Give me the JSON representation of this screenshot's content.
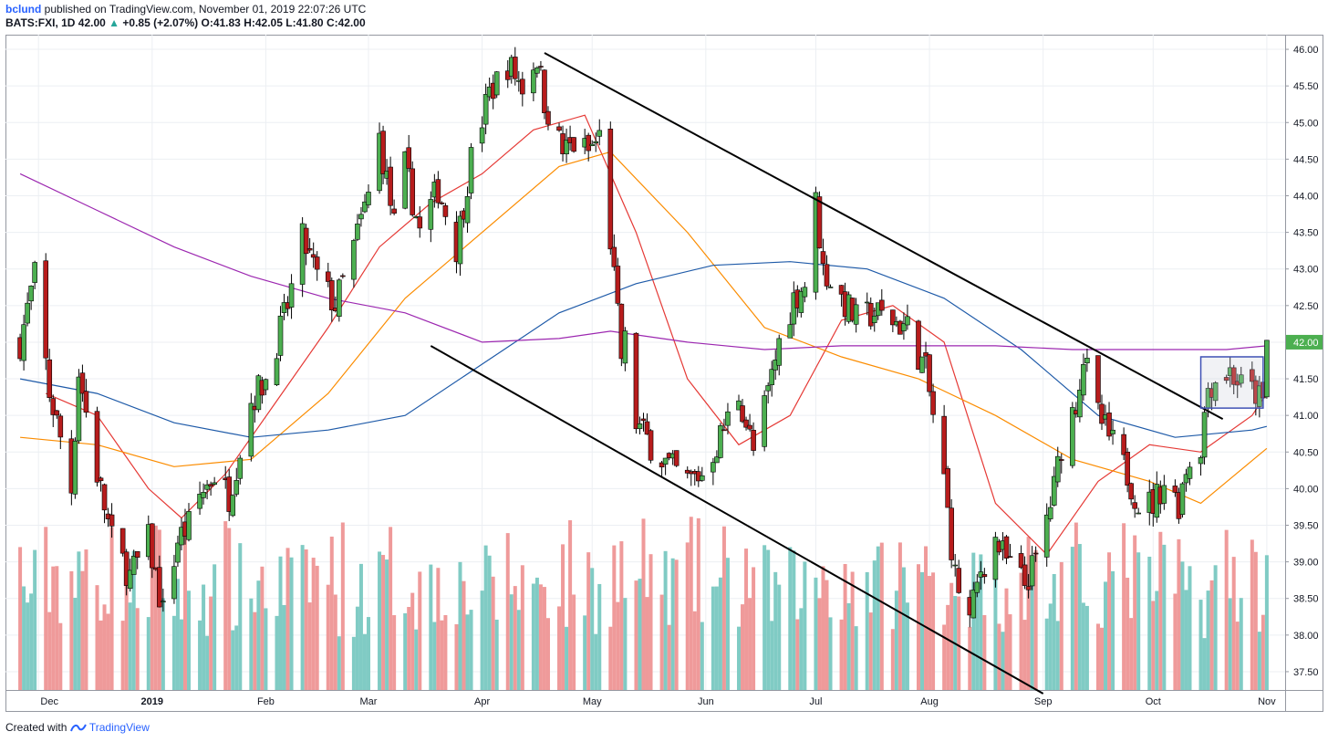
{
  "header": {
    "author": "bclund",
    "published": " published on TradingView.com, November 01, 2019 22:07:26 UTC",
    "symbol": "BATS:FXI, 1D",
    "last": "42.00",
    "change": "+0.85 (+2.07%)",
    "open_label": "O:",
    "open": "41.83",
    "high_label": "H:",
    "high": "42.05",
    "low_label": "L:",
    "low": "41.80",
    "close_label": "C:",
    "close": "42.00",
    "up_arrow": "▲"
  },
  "footer": {
    "created_with": "Created with",
    "brand": "TradingView",
    "brand_icon": "tradingview-logo-icon"
  },
  "chart_data": {
    "type": "candlestick",
    "symbol": "BATS:FXI",
    "interval": "1D",
    "last_price_label": "42.00",
    "y_range": [
      37.25,
      46.2
    ],
    "y_ticks": [
      "46.00",
      "45.50",
      "45.00",
      "44.50",
      "44.00",
      "43.50",
      "43.00",
      "42.50",
      "42.00",
      "41.50",
      "41.00",
      "40.50",
      "40.00",
      "39.50",
      "39.00",
      "38.50",
      "38.00",
      "37.50"
    ],
    "x_ticks": [
      "Dec",
      "2019",
      "Feb",
      "Mar",
      "Apr",
      "May",
      "Jun",
      "Jul",
      "Aug",
      "Sep",
      "Oct",
      "Nov"
    ],
    "x_tick_dates": [
      "2018-12-01",
      "2019-01-01",
      "2019-02-01",
      "2019-03-01",
      "2019-04-01",
      "2019-05-01",
      "2019-06-01",
      "2019-07-01",
      "2019-08-01",
      "2019-09-01",
      "2019-10-01",
      "2019-11-01"
    ],
    "grid": true,
    "colors": {
      "up": "#4caf50",
      "down": "#b71c1c",
      "volume_up": "#80cbc4",
      "volume_down": "#ef9a9a",
      "ma_fast": "#e53935",
      "ma_mid": "#fb8c00",
      "ma_slow": "#1e5aa8",
      "ma_long": "#9c27b0",
      "trendline": "#000000",
      "box": "#3f51b5"
    },
    "price_path": [
      [
        "2018-11-26",
        42.0
      ],
      [
        "2018-11-30",
        42.9
      ],
      [
        "2018-12-04",
        41.3
      ],
      [
        "2018-12-07",
        40.7
      ],
      [
        "2018-12-10",
        40.0
      ],
      [
        "2018-12-12",
        41.6
      ],
      [
        "2018-12-17",
        40.2
      ],
      [
        "2018-12-21",
        39.3
      ],
      [
        "2018-12-26",
        38.8
      ],
      [
        "2018-12-31",
        39.3
      ],
      [
        "2019-01-04",
        38.3
      ],
      [
        "2019-01-08",
        39.3
      ],
      [
        "2019-01-11",
        39.5
      ],
      [
        "2019-01-14",
        39.9
      ],
      [
        "2019-01-18",
        40.2
      ],
      [
        "2019-01-22",
        39.9
      ],
      [
        "2019-01-28",
        41.2
      ],
      [
        "2019-02-01",
        41.5
      ],
      [
        "2019-02-07",
        42.5
      ],
      [
        "2019-02-11",
        43.4
      ],
      [
        "2019-02-15",
        42.9
      ],
      [
        "2019-02-20",
        42.5
      ],
      [
        "2019-02-25",
        43.3
      ],
      [
        "2019-03-01",
        44.0
      ],
      [
        "2019-03-04",
        44.8
      ],
      [
        "2019-03-08",
        43.6
      ],
      [
        "2019-03-11",
        44.4
      ],
      [
        "2019-03-15",
        43.5
      ],
      [
        "2019-03-20",
        44.1
      ],
      [
        "2019-03-25",
        43.3
      ],
      [
        "2019-03-29",
        44.5
      ],
      [
        "2019-04-03",
        45.4
      ],
      [
        "2019-04-08",
        45.8
      ],
      [
        "2019-04-12",
        45.5
      ],
      [
        "2019-04-16",
        45.9
      ],
      [
        "2019-04-18",
        45.3
      ],
      [
        "2019-04-23",
        44.6
      ],
      [
        "2019-04-26",
        44.7
      ],
      [
        "2019-04-30",
        44.6
      ],
      [
        "2019-05-03",
        44.8
      ],
      [
        "2019-05-06",
        43.4
      ],
      [
        "2019-05-09",
        41.8
      ],
      [
        "2019-05-10",
        42.0
      ],
      [
        "2019-05-13",
        40.9
      ],
      [
        "2019-05-17",
        40.6
      ],
      [
        "2019-05-22",
        40.3
      ],
      [
        "2019-05-27",
        40.1
      ],
      [
        "2019-05-31",
        40.2
      ],
      [
        "2019-06-04",
        40.6
      ],
      [
        "2019-06-10",
        41.3
      ],
      [
        "2019-06-14",
        40.5
      ],
      [
        "2019-06-18",
        41.3
      ],
      [
        "2019-06-21",
        42.0
      ],
      [
        "2019-06-25",
        42.6
      ],
      [
        "2019-06-28",
        42.8
      ],
      [
        "2019-07-01",
        43.9
      ],
      [
        "2019-07-03",
        43.0
      ],
      [
        "2019-07-08",
        42.6
      ],
      [
        "2019-07-12",
        42.3
      ],
      [
        "2019-07-17",
        42.4
      ],
      [
        "2019-07-22",
        42.3
      ],
      [
        "2019-07-26",
        42.2
      ],
      [
        "2019-07-31",
        41.6
      ],
      [
        "2019-08-02",
        41.0
      ],
      [
        "2019-08-05",
        40.1
      ],
      [
        "2019-08-08",
        38.8
      ],
      [
        "2019-08-12",
        38.2
      ],
      [
        "2019-08-15",
        38.9
      ],
      [
        "2019-08-19",
        39.3
      ],
      [
        "2019-08-22",
        39.0
      ],
      [
        "2019-08-27",
        38.7
      ],
      [
        "2019-08-30",
        39.0
      ],
      [
        "2019-09-04",
        40.0
      ],
      [
        "2019-09-06",
        40.6
      ],
      [
        "2019-09-10",
        41.2
      ],
      [
        "2019-09-12",
        41.8
      ],
      [
        "2019-09-16",
        41.0
      ],
      [
        "2019-09-20",
        40.6
      ],
      [
        "2019-09-24",
        40.2
      ],
      [
        "2019-09-27",
        39.8
      ],
      [
        "2019-10-01",
        39.8
      ],
      [
        "2019-10-04",
        40.1
      ],
      [
        "2019-10-08",
        39.8
      ],
      [
        "2019-10-10",
        40.3
      ],
      [
        "2019-10-14",
        40.6
      ],
      [
        "2019-10-16",
        41.4
      ],
      [
        "2019-10-18",
        41.5
      ],
      [
        "2019-10-22",
        41.6
      ],
      [
        "2019-10-25",
        41.4
      ],
      [
        "2019-10-29",
        41.3
      ],
      [
        "2019-10-31",
        41.15
      ],
      [
        "2019-11-01",
        42.0
      ]
    ],
    "moving_averages": [
      {
        "color": "ma_fast",
        "points": [
          [
            "2018-12-03",
            41.3
          ],
          [
            "2018-12-17",
            41.0
          ],
          [
            "2018-12-31",
            40.0
          ],
          [
            "2019-01-09",
            39.6
          ],
          [
            "2019-01-21",
            40.2
          ],
          [
            "2019-02-04",
            41.2
          ],
          [
            "2019-02-18",
            42.2
          ],
          [
            "2019-03-04",
            43.3
          ],
          [
            "2019-03-18",
            43.9
          ],
          [
            "2019-04-01",
            44.3
          ],
          [
            "2019-04-15",
            44.9
          ],
          [
            "2019-04-29",
            45.1
          ],
          [
            "2019-05-13",
            43.5
          ],
          [
            "2019-05-27",
            41.5
          ],
          [
            "2019-06-10",
            40.6
          ],
          [
            "2019-06-24",
            41.0
          ],
          [
            "2019-07-08",
            42.3
          ],
          [
            "2019-07-22",
            42.5
          ],
          [
            "2019-08-05",
            42.0
          ],
          [
            "2019-08-19",
            39.8
          ],
          [
            "2019-09-02",
            39.1
          ],
          [
            "2019-09-16",
            40.1
          ],
          [
            "2019-09-30",
            40.6
          ],
          [
            "2019-10-14",
            40.5
          ],
          [
            "2019-10-28",
            41.0
          ],
          [
            "2019-11-01",
            41.3
          ]
        ]
      },
      {
        "color": "ma_mid",
        "points": [
          [
            "2018-11-26",
            40.7
          ],
          [
            "2018-12-17",
            40.6
          ],
          [
            "2019-01-07",
            40.3
          ],
          [
            "2019-01-28",
            40.4
          ],
          [
            "2019-02-18",
            41.3
          ],
          [
            "2019-03-11",
            42.6
          ],
          [
            "2019-04-01",
            43.5
          ],
          [
            "2019-04-22",
            44.4
          ],
          [
            "2019-05-06",
            44.6
          ],
          [
            "2019-05-27",
            43.5
          ],
          [
            "2019-06-17",
            42.2
          ],
          [
            "2019-07-08",
            41.8
          ],
          [
            "2019-07-29",
            41.5
          ],
          [
            "2019-08-19",
            41.0
          ],
          [
            "2019-09-09",
            40.4
          ],
          [
            "2019-09-30",
            40.1
          ],
          [
            "2019-10-14",
            39.8
          ],
          [
            "2019-11-01",
            40.55
          ]
        ]
      },
      {
        "color": "ma_slow",
        "points": [
          [
            "2018-11-26",
            41.5
          ],
          [
            "2018-12-17",
            41.3
          ],
          [
            "2019-01-07",
            40.9
          ],
          [
            "2019-01-28",
            40.7
          ],
          [
            "2019-02-18",
            40.8
          ],
          [
            "2019-03-11",
            41.0
          ],
          [
            "2019-04-01",
            41.7
          ],
          [
            "2019-04-22",
            42.4
          ],
          [
            "2019-05-13",
            42.8
          ],
          [
            "2019-06-03",
            43.05
          ],
          [
            "2019-06-24",
            43.1
          ],
          [
            "2019-07-15",
            43.0
          ],
          [
            "2019-08-05",
            42.6
          ],
          [
            "2019-08-26",
            41.9
          ],
          [
            "2019-09-16",
            41.0
          ],
          [
            "2019-10-07",
            40.7
          ],
          [
            "2019-10-28",
            40.8
          ],
          [
            "2019-11-01",
            40.85
          ]
        ]
      },
      {
        "color": "ma_long",
        "points": [
          [
            "2018-11-26",
            44.3
          ],
          [
            "2018-12-17",
            43.8
          ],
          [
            "2019-01-07",
            43.3
          ],
          [
            "2019-01-28",
            42.9
          ],
          [
            "2019-02-18",
            42.6
          ],
          [
            "2019-03-11",
            42.4
          ],
          [
            "2019-04-01",
            42.0
          ],
          [
            "2019-04-22",
            42.05
          ],
          [
            "2019-05-06",
            42.15
          ],
          [
            "2019-05-27",
            42.0
          ],
          [
            "2019-06-17",
            41.9
          ],
          [
            "2019-07-08",
            41.95
          ],
          [
            "2019-07-29",
            41.95
          ],
          [
            "2019-08-19",
            41.95
          ],
          [
            "2019-09-09",
            41.9
          ],
          [
            "2019-09-30",
            41.9
          ],
          [
            "2019-10-21",
            41.9
          ],
          [
            "2019-11-01",
            41.95
          ]
        ]
      }
    ],
    "trendlines": [
      {
        "from": [
          "2019-04-18",
          45.95
        ],
        "to": [
          "2019-10-20",
          40.95
        ]
      },
      {
        "from": [
          "2019-03-18",
          41.95
        ],
        "to": [
          "2019-09-01",
          37.2
        ]
      }
    ],
    "consolidation_box": {
      "x_from": "2019-10-14",
      "x_to": "2019-10-31",
      "y_from": 41.1,
      "y_to": 41.8
    }
  }
}
